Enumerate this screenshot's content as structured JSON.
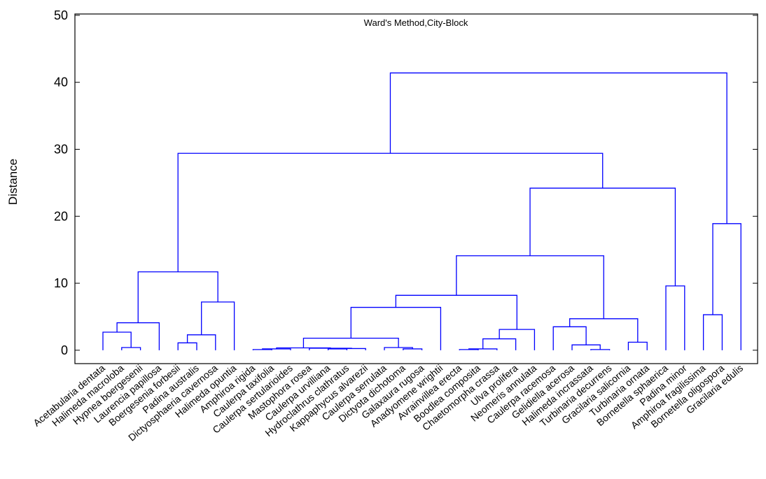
{
  "chart_data": {
    "type": "dendrogram",
    "title": "Ward's Method,City-Block",
    "y_label": "Distance",
    "color": "#0000ff",
    "categories": [
      "Acetabularia dentata",
      "Halimeda macroloba",
      "Hypnea boergesenii",
      "Laurencia papillosa",
      "Boergesenia forbesii",
      "Padina australis",
      "Dictyosphaeria cavernosa",
      "Halimeda opuntia",
      "Amphiroa rigida",
      "Caulerpa taxifolia",
      "Caulerpa sertularioides",
      "Mastophora rosea",
      "Caulerpa urvilliana",
      "Hydroclathrus clathratus",
      "Kappaphycus alvarezii",
      "Caulerpa serrulata",
      "Dictyota dichotoma",
      "Galaxaura rugosa",
      "Anadyomene wrightii",
      "Avrainvillea erecta",
      "Boodlea composita",
      "Chaetomorpha crassa",
      "Ulva prolifera",
      "Neomeris annulata",
      "Caulerpa racemosa",
      "Gelidiella acerosa",
      "Halimeda incrassata",
      "Turbinaria decurrens",
      "Gracilaria salicornia",
      "Turbinaria ornata",
      "Bornetella sphaerica",
      "Padina minor",
      "Amphiroa fragilissima",
      "Bornetella oligospora",
      "Gracilaria edulis"
    ],
    "merges": [
      [
        1,
        2,
        0.4
      ],
      [
        0,
        35,
        2.7
      ],
      [
        36,
        3,
        4.1
      ],
      [
        4,
        5,
        1.1
      ],
      [
        38,
        6,
        2.3
      ],
      [
        39,
        7,
        7.2
      ],
      [
        37,
        40,
        11.7
      ],
      [
        8,
        9,
        0.1
      ],
      [
        42,
        10,
        0.2
      ],
      [
        12,
        13,
        0.2
      ],
      [
        44,
        14,
        0.25
      ],
      [
        11,
        45,
        0.3
      ],
      [
        43,
        46,
        0.35
      ],
      [
        16,
        17,
        0.2
      ],
      [
        15,
        48,
        0.4
      ],
      [
        47,
        49,
        1.8
      ],
      [
        50,
        18,
        6.4
      ],
      [
        19,
        20,
        0.1
      ],
      [
        52,
        21,
        0.2
      ],
      [
        53,
        22,
        1.7
      ],
      [
        54,
        23,
        3.1
      ],
      [
        51,
        55,
        8.2
      ],
      [
        26,
        27,
        0.1
      ],
      [
        25,
        57,
        0.8
      ],
      [
        24,
        58,
        3.5
      ],
      [
        28,
        29,
        1.2
      ],
      [
        59,
        60,
        4.7
      ],
      [
        56,
        61,
        14.1
      ],
      [
        30,
        31,
        9.6
      ],
      [
        62,
        63,
        24.2
      ],
      [
        41,
        64,
        29.4
      ],
      [
        32,
        33,
        5.3
      ],
      [
        66,
        34,
        18.9
      ],
      [
        65,
        67,
        41.4
      ]
    ],
    "ylim": [
      -2,
      50.2
    ],
    "yticks": [
      0,
      10,
      20,
      30,
      40,
      50
    ]
  }
}
